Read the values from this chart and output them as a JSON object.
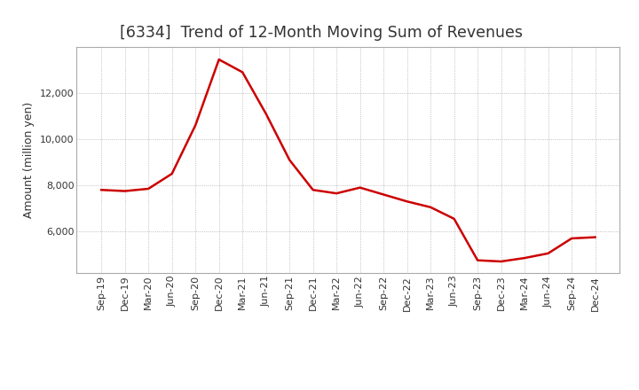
{
  "title": "[6334]  Trend of 12-Month Moving Sum of Revenues",
  "ylabel": "Amount (million yen)",
  "line_color": "#cc0000",
  "background_color": "#ffffff",
  "plot_bg_color": "#ffffff",
  "grid_color": "#999999",
  "x_labels": [
    "Sep-19",
    "Dec-19",
    "Mar-20",
    "Jun-20",
    "Sep-20",
    "Dec-20",
    "Mar-21",
    "Jun-21",
    "Sep-21",
    "Dec-21",
    "Mar-22",
    "Jun-22",
    "Sep-22",
    "Dec-22",
    "Mar-23",
    "Jun-23",
    "Sep-23",
    "Dec-23",
    "Mar-24",
    "Jun-24",
    "Sep-24",
    "Dec-24"
  ],
  "values": [
    7800,
    7750,
    7850,
    8500,
    10600,
    13450,
    12900,
    11100,
    9100,
    7800,
    7650,
    7900,
    7600,
    7300,
    7050,
    6550,
    4750,
    4700,
    4850,
    5050,
    5700,
    5750
  ],
  "ylim_min": 4200,
  "ylim_max": 14000,
  "yticks": [
    6000,
    8000,
    10000,
    12000
  ],
  "title_fontsize": 12.5,
  "label_fontsize": 9,
  "tick_fontsize": 8,
  "title_color": "#333333"
}
